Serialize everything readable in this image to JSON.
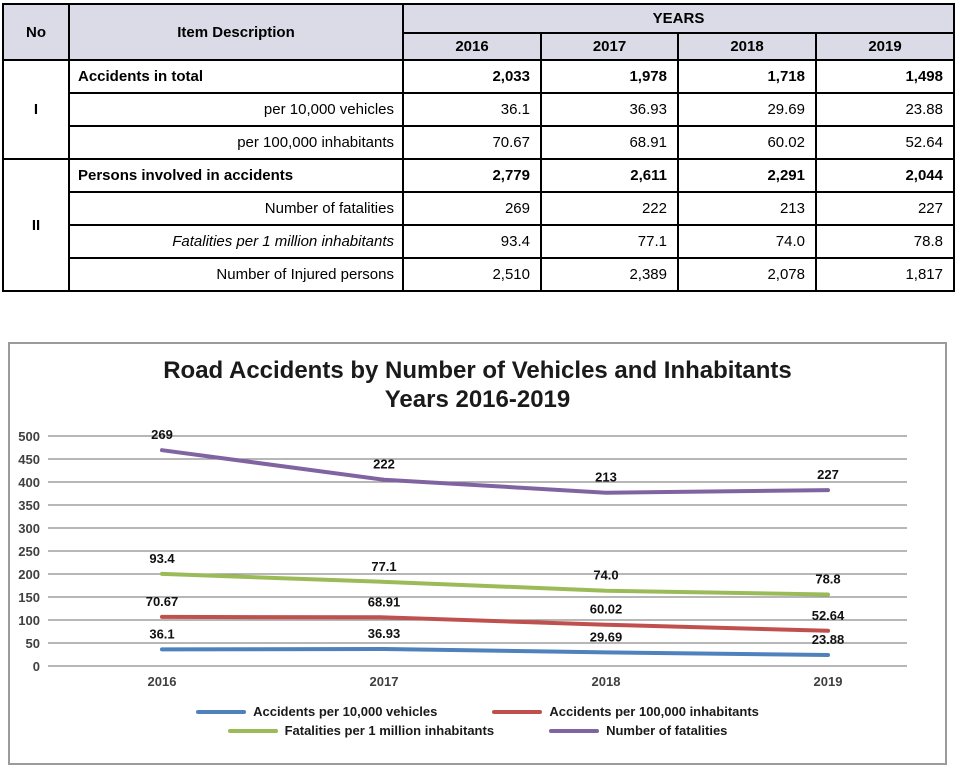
{
  "table": {
    "headers": {
      "no": "No",
      "item_description": "Item Description",
      "years_group": "YEARS",
      "years": [
        "2016",
        "2017",
        "2018",
        "2019"
      ]
    },
    "sections": [
      {
        "no": "I",
        "rows": [
          {
            "label": "Accidents in total",
            "emphasis": "bold",
            "values": [
              "2,033",
              "1,978",
              "1,718",
              "1,498"
            ]
          },
          {
            "label": "per 10,000 vehicles",
            "emphasis": "plain",
            "values": [
              "36.1",
              "36.93",
              "29.69",
              "23.88"
            ]
          },
          {
            "label": "per 100,000 inhabitants",
            "emphasis": "plain",
            "values": [
              "70.67",
              "68.91",
              "60.02",
              "52.64"
            ]
          }
        ]
      },
      {
        "no": "II",
        "rows": [
          {
            "label": "Persons involved in accidents",
            "emphasis": "bold",
            "values": [
              "2,779",
              "2,611",
              "2,291",
              "2,044"
            ]
          },
          {
            "label": "Number of fatalities",
            "emphasis": "plain",
            "values": [
              "269",
              "222",
              "213",
              "227"
            ]
          },
          {
            "label": "Fatalities per 1 million inhabitants",
            "emphasis": "italic",
            "values": [
              "93.4",
              "77.1",
              "74.0",
              "78.8"
            ]
          },
          {
            "label": "Number of Injured persons",
            "emphasis": "plain",
            "values": [
              "2,510",
              "2,389",
              "2,078",
              "1,817"
            ]
          }
        ]
      }
    ]
  },
  "chart_data": {
    "type": "line",
    "stacked": true,
    "title_line1": "Road Accidents by Number of Vehicles and Inhabitants",
    "title_line2": "Years 2016-2019",
    "x": [
      "2016",
      "2017",
      "2018",
      "2019"
    ],
    "series": [
      {
        "name": "Accidents per 10,000 vehicles",
        "color": "#4F81BD",
        "values": [
          36.1,
          36.93,
          29.69,
          23.88
        ],
        "value_labels": [
          "36.1",
          "36.93",
          "29.69",
          "23.88"
        ]
      },
      {
        "name": "Accidents per 100,000 inhabitants",
        "color": "#C0504D",
        "values": [
          70.67,
          68.91,
          60.02,
          52.64
        ],
        "value_labels": [
          "70.67",
          "68.91",
          "60.02",
          "52.64"
        ]
      },
      {
        "name": "Fatalities per 1 million inhabitants",
        "color": "#9BBB59",
        "values": [
          93.4,
          77.1,
          74.0,
          78.8
        ],
        "value_labels": [
          "93.4",
          "77.1",
          "74.0",
          "78.8"
        ]
      },
      {
        "name": "Number of fatalities",
        "color": "#8064A2",
        "values": [
          269,
          222,
          213,
          227
        ],
        "value_labels": [
          "269",
          "222",
          "213",
          "227"
        ]
      }
    ],
    "ylim": [
      0,
      500
    ],
    "y_ticks": [
      0,
      50,
      100,
      150,
      200,
      250,
      300,
      350,
      400,
      450,
      500
    ],
    "grid": true,
    "legend_position": "bottom",
    "legend_rows": [
      [
        0,
        1
      ],
      [
        2,
        3
      ]
    ]
  }
}
